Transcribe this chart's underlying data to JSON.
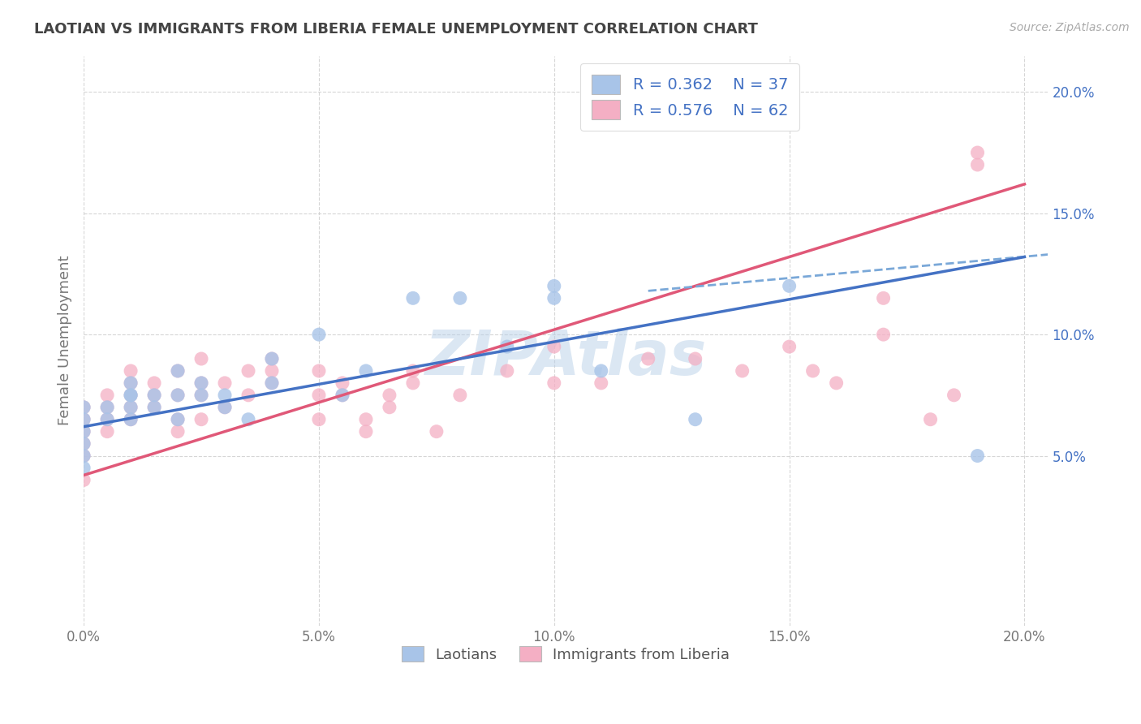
{
  "title": "LAOTIAN VS IMMIGRANTS FROM LIBERIA FEMALE UNEMPLOYMENT CORRELATION CHART",
  "source_text": "Source: ZipAtlas.com",
  "ylabel": "Female Unemployment",
  "xlim": [
    0.0,
    0.205
  ],
  "ylim": [
    -0.02,
    0.215
  ],
  "xticks": [
    0.0,
    0.05,
    0.1,
    0.15,
    0.2
  ],
  "yticks": [
    0.05,
    0.1,
    0.15,
    0.2
  ],
  "xticklabels": [
    "0.0%",
    "5.0%",
    "10.0%",
    "15.0%",
    "20.0%"
  ],
  "yticklabels": [
    "5.0%",
    "10.0%",
    "15.0%",
    "20.0%"
  ],
  "series1_color": "#a8c4e8",
  "series2_color": "#f4afc4",
  "line1_color": "#4472c4",
  "line2_color": "#e05878",
  "dash_color": "#7aa8d8",
  "background_color": "#ffffff",
  "grid_color": "#cccccc",
  "title_color": "#444444",
  "ylabel_color": "#777777",
  "ytick_color": "#4472c4",
  "xtick_color": "#777777",
  "watermark_color": "#b8d0e8",
  "series1_label": "Laotians",
  "series2_label": "Immigrants from Liberia",
  "laotian_x": [
    0.0,
    0.0,
    0.0,
    0.0,
    0.0,
    0.0,
    0.005,
    0.005,
    0.01,
    0.01,
    0.01,
    0.01,
    0.01,
    0.015,
    0.015,
    0.02,
    0.02,
    0.02,
    0.025,
    0.025,
    0.03,
    0.03,
    0.035,
    0.04,
    0.04,
    0.05,
    0.055,
    0.06,
    0.07,
    0.08,
    0.09,
    0.1,
    0.1,
    0.11,
    0.13,
    0.15,
    0.19
  ],
  "laotian_y": [
    0.065,
    0.07,
    0.06,
    0.055,
    0.05,
    0.045,
    0.07,
    0.065,
    0.075,
    0.07,
    0.065,
    0.075,
    0.08,
    0.075,
    0.07,
    0.085,
    0.075,
    0.065,
    0.08,
    0.075,
    0.075,
    0.07,
    0.065,
    0.08,
    0.09,
    0.1,
    0.075,
    0.085,
    0.115,
    0.115,
    0.095,
    0.115,
    0.12,
    0.085,
    0.065,
    0.12,
    0.05
  ],
  "liberia_x": [
    0.0,
    0.0,
    0.0,
    0.0,
    0.0,
    0.0,
    0.005,
    0.005,
    0.005,
    0.005,
    0.01,
    0.01,
    0.01,
    0.01,
    0.01,
    0.015,
    0.015,
    0.015,
    0.02,
    0.02,
    0.02,
    0.02,
    0.025,
    0.025,
    0.025,
    0.025,
    0.03,
    0.03,
    0.035,
    0.035,
    0.04,
    0.04,
    0.04,
    0.05,
    0.05,
    0.05,
    0.055,
    0.055,
    0.06,
    0.06,
    0.065,
    0.065,
    0.07,
    0.07,
    0.075,
    0.08,
    0.09,
    0.1,
    0.1,
    0.11,
    0.12,
    0.13,
    0.14,
    0.15,
    0.155,
    0.16,
    0.17,
    0.17,
    0.18,
    0.185,
    0.19,
    0.19
  ],
  "liberia_y": [
    0.065,
    0.07,
    0.06,
    0.055,
    0.05,
    0.04,
    0.065,
    0.07,
    0.075,
    0.06,
    0.075,
    0.07,
    0.08,
    0.085,
    0.065,
    0.08,
    0.075,
    0.07,
    0.085,
    0.075,
    0.065,
    0.06,
    0.09,
    0.08,
    0.075,
    0.065,
    0.07,
    0.08,
    0.085,
    0.075,
    0.085,
    0.09,
    0.08,
    0.075,
    0.085,
    0.065,
    0.08,
    0.075,
    0.065,
    0.06,
    0.07,
    0.075,
    0.08,
    0.085,
    0.06,
    0.075,
    0.085,
    0.095,
    0.08,
    0.08,
    0.09,
    0.09,
    0.085,
    0.095,
    0.085,
    0.08,
    0.1,
    0.115,
    0.065,
    0.075,
    0.17,
    0.175
  ],
  "blue_line_x0": 0.0,
  "blue_line_y0": 0.062,
  "blue_line_x1": 0.2,
  "blue_line_y1": 0.132,
  "pink_line_x0": 0.0,
  "pink_line_y0": 0.042,
  "pink_line_x1": 0.2,
  "pink_line_y1": 0.162,
  "dash_line_x0": 0.12,
  "dash_line_y0": 0.118,
  "dash_line_x1": 0.205,
  "dash_line_y1": 0.133
}
